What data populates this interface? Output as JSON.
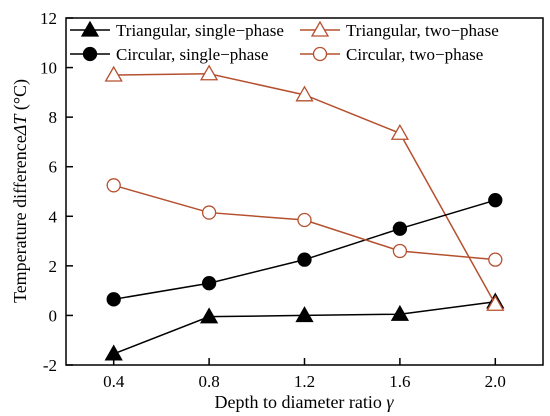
{
  "chart_data": {
    "type": "line",
    "xlabel_text": "Depth to diameter ratio",
    "xlabel_symbol": "γ",
    "ylabel_text": "Temperature difference",
    "ylabel_symbol": "ΔT",
    "ylabel_unit": "(°C)",
    "x": [
      0.4,
      0.8,
      1.2,
      1.6,
      2.0
    ],
    "xlim": [
      0.2,
      2.2
    ],
    "ylim": [
      -2,
      12
    ],
    "x_ticks": [
      "0.4",
      "0.8",
      "1.2",
      "1.6",
      "2.0"
    ],
    "y_ticks": [
      "-2",
      "0",
      "2",
      "4",
      "6",
      "8",
      "10",
      "12"
    ],
    "grid": false,
    "legend_position": "top",
    "series": [
      {
        "name": "Triangular, single−phase",
        "marker": "triangle",
        "filled": true,
        "color": "#000000",
        "values": [
          -1.55,
          -0.05,
          0.0,
          0.05,
          0.55
        ]
      },
      {
        "name": "Triangular, two−phase",
        "marker": "triangle",
        "filled": false,
        "color": "#b5502f",
        "values": [
          9.7,
          9.75,
          8.9,
          7.35,
          0.45
        ]
      },
      {
        "name": "Circular, single−phase",
        "marker": "circle",
        "filled": true,
        "color": "#000000",
        "values": [
          0.65,
          1.3,
          2.25,
          3.5,
          4.65
        ]
      },
      {
        "name": "Circular, two−phase",
        "marker": "circle",
        "filled": false,
        "color": "#b5502f",
        "values": [
          5.25,
          4.15,
          3.85,
          2.6,
          2.25
        ]
      }
    ]
  }
}
